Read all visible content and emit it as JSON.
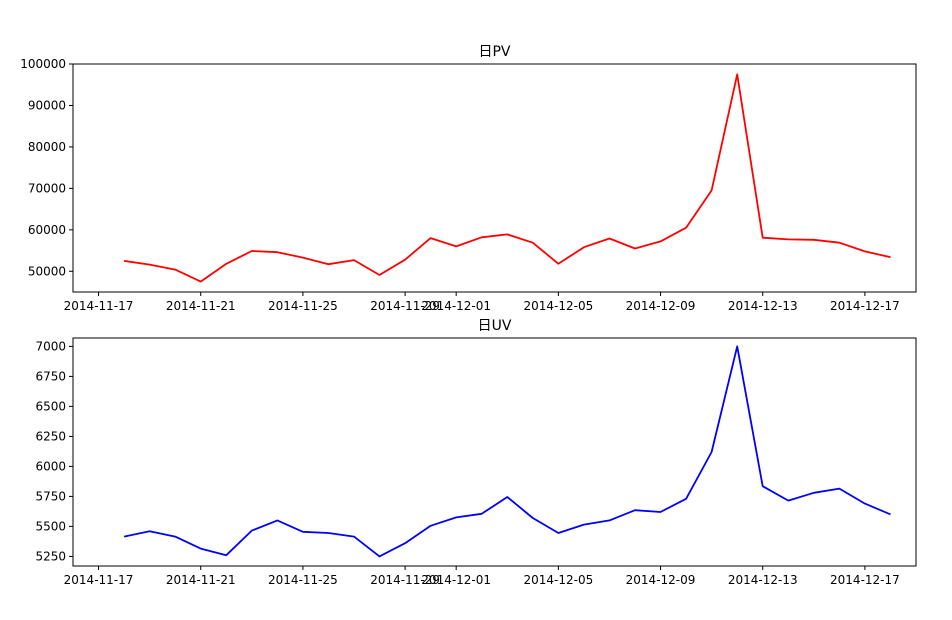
{
  "chart_data": [
    {
      "type": "line",
      "title": "日PV",
      "xlabel": "",
      "ylabel": "",
      "color": "#ff0000",
      "ylim": [
        45000,
        100000
      ],
      "xlim": [
        "2014-11-16",
        "2014-12-19"
      ],
      "x_ticks": [
        "2014-11-17",
        "2014-11-21",
        "2014-11-25",
        "2014-11-29",
        "2014-12-01",
        "2014-12-05",
        "2014-12-09",
        "2014-12-13",
        "2014-12-17"
      ],
      "y_ticks": [
        50000,
        60000,
        70000,
        80000,
        90000,
        100000
      ],
      "grid": false,
      "series": [
        {
          "x": [
            "2014-11-18",
            "2014-11-19",
            "2014-11-20",
            "2014-11-21",
            "2014-11-22",
            "2014-11-23",
            "2014-11-24",
            "2014-11-25",
            "2014-11-26",
            "2014-11-27",
            "2014-11-28",
            "2014-11-29",
            "2014-11-30",
            "2014-12-01",
            "2014-12-02",
            "2014-12-03",
            "2014-12-04",
            "2014-12-05",
            "2014-12-06",
            "2014-12-07",
            "2014-12-08",
            "2014-12-09",
            "2014-12-10",
            "2014-12-11",
            "2014-12-12",
            "2014-12-13",
            "2014-12-14",
            "2014-12-15",
            "2014-12-16",
            "2014-12-17",
            "2014-12-18"
          ],
          "values": [
            52500,
            51600,
            50400,
            47500,
            51800,
            54900,
            54600,
            53300,
            51700,
            52700,
            49100,
            52800,
            58000,
            56000,
            58200,
            58900,
            56900,
            51800,
            55800,
            57900,
            55500,
            57200,
            60500,
            69500,
            97500,
            58100,
            57700,
            57600,
            56900,
            54800,
            53400
          ]
        }
      ]
    },
    {
      "type": "line",
      "title": "日UV",
      "xlabel": "",
      "ylabel": "",
      "color": "#0000ff",
      "ylim": [
        5170,
        7070
      ],
      "xlim": [
        "2014-11-16",
        "2014-12-19"
      ],
      "x_ticks": [
        "2014-11-17",
        "2014-11-21",
        "2014-11-25",
        "2014-11-29",
        "2014-12-01",
        "2014-12-05",
        "2014-12-09",
        "2014-12-13",
        "2014-12-17"
      ],
      "y_ticks": [
        5250,
        5500,
        5750,
        6000,
        6250,
        6500,
        6750,
        7000
      ],
      "grid": false,
      "series": [
        {
          "x": [
            "2014-11-18",
            "2014-11-19",
            "2014-11-20",
            "2014-11-21",
            "2014-11-22",
            "2014-11-23",
            "2014-11-24",
            "2014-11-25",
            "2014-11-26",
            "2014-11-27",
            "2014-11-28",
            "2014-11-29",
            "2014-11-30",
            "2014-12-01",
            "2014-12-02",
            "2014-12-03",
            "2014-12-04",
            "2014-12-05",
            "2014-12-06",
            "2014-12-07",
            "2014-12-08",
            "2014-12-09",
            "2014-12-10",
            "2014-12-11",
            "2014-12-12",
            "2014-12-13",
            "2014-12-14",
            "2014-12-15",
            "2014-12-16",
            "2014-12-17",
            "2014-12-18"
          ],
          "values": [
            5415,
            5460,
            5415,
            5315,
            5260,
            5465,
            5550,
            5455,
            5445,
            5415,
            5250,
            5360,
            5505,
            5575,
            5605,
            5745,
            5570,
            5445,
            5515,
            5550,
            5635,
            5620,
            5730,
            6120,
            7000,
            5835,
            5715,
            5780,
            5815,
            5690,
            5600
          ]
        }
      ]
    }
  ]
}
